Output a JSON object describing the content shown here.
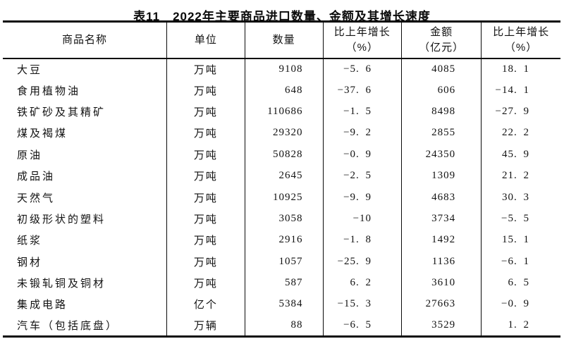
{
  "title": "表11　2022年主要商品进口数量、金额及其增长速度",
  "colors": {
    "text": "#121212",
    "border": "#0a0a0a",
    "background": "#ffffff"
  },
  "table": {
    "headers": [
      {
        "line1": "商品名称"
      },
      {
        "line1": "单位"
      },
      {
        "line1": "数量"
      },
      {
        "line1": "比上年增长",
        "line2": "（%）"
      },
      {
        "line1": "金额",
        "line2": "（亿元）"
      },
      {
        "line1": "比上年增长",
        "line2": "（%）"
      }
    ],
    "rows": [
      {
        "name": "大豆",
        "unit": "万吨",
        "quantity": 9108,
        "quantity_growth": -5.6,
        "amount": 4085,
        "amount_growth": 18.1
      },
      {
        "name": "食用植物油",
        "unit": "万吨",
        "quantity": 648,
        "quantity_growth": -37.6,
        "amount": 606,
        "amount_growth": -14.1
      },
      {
        "name": "铁矿砂及其精矿",
        "unit": "万吨",
        "quantity": 110686,
        "quantity_growth": -1.5,
        "amount": 8498,
        "amount_growth": -27.9
      },
      {
        "name": "煤及褐煤",
        "unit": "万吨",
        "quantity": 29320,
        "quantity_growth": -9.2,
        "amount": 2855,
        "amount_growth": 22.2
      },
      {
        "name": "原油",
        "unit": "万吨",
        "quantity": 50828,
        "quantity_growth": -0.9,
        "amount": 24350,
        "amount_growth": 45.9
      },
      {
        "name": "成品油",
        "unit": "万吨",
        "quantity": 2645,
        "quantity_growth": -2.5,
        "amount": 1309,
        "amount_growth": 21.2
      },
      {
        "name": "天然气",
        "unit": "万吨",
        "quantity": 10925,
        "quantity_growth": -9.9,
        "amount": 4683,
        "amount_growth": 30.3
      },
      {
        "name": "初级形状的塑料",
        "unit": "万吨",
        "quantity": 3058,
        "quantity_growth": -10.0,
        "amount": 3734,
        "amount_growth": -5.5
      },
      {
        "name": "纸浆",
        "unit": "万吨",
        "quantity": 2916,
        "quantity_growth": -1.8,
        "amount": 1492,
        "amount_growth": 15.1
      },
      {
        "name": "钢材",
        "unit": "万吨",
        "quantity": 1057,
        "quantity_growth": -25.9,
        "amount": 1136,
        "amount_growth": -6.1
      },
      {
        "name": "未锻轧铜及铜材",
        "unit": "万吨",
        "quantity": 587,
        "quantity_growth": 6.2,
        "amount": 3610,
        "amount_growth": 6.5
      },
      {
        "name": "集成电路",
        "unit": "亿个",
        "quantity": 5384,
        "quantity_growth": -15.3,
        "amount": 27663,
        "amount_growth": -0.9
      },
      {
        "name": "汽车（包括底盘）",
        "unit": "万辆",
        "quantity": 88,
        "quantity_growth": -6.5,
        "amount": 3529,
        "amount_growth": 1.2
      }
    ]
  },
  "chart_data": {
    "type": "table",
    "title": "表11　2022年主要商品进口数量、金额及其增长速度",
    "columns": [
      "商品名称",
      "单位",
      "数量",
      "比上年增长（%）",
      "金额（亿元）",
      "比上年增长（%）"
    ],
    "rows": [
      [
        "大豆",
        "万吨",
        9108,
        -5.6,
        4085,
        18.1
      ],
      [
        "食用植物油",
        "万吨",
        648,
        -37.6,
        606,
        -14.1
      ],
      [
        "铁矿砂及其精矿",
        "万吨",
        110686,
        -1.5,
        8498,
        -27.9
      ],
      [
        "煤及褐煤",
        "万吨",
        29320,
        -9.2,
        2855,
        22.2
      ],
      [
        "原油",
        "万吨",
        50828,
        -0.9,
        24350,
        45.9
      ],
      [
        "成品油",
        "万吨",
        2645,
        -2.5,
        1309,
        21.2
      ],
      [
        "天然气",
        "万吨",
        10925,
        -9.9,
        4683,
        30.3
      ],
      [
        "初级形状的塑料",
        "万吨",
        3058,
        -10.0,
        3734,
        -5.5
      ],
      [
        "纸浆",
        "万吨",
        2916,
        -1.8,
        1492,
        15.1
      ],
      [
        "钢材",
        "万吨",
        1057,
        -25.9,
        1136,
        -6.1
      ],
      [
        "未锻轧铜及铜材",
        "万吨",
        587,
        6.2,
        3610,
        6.5
      ],
      [
        "集成电路",
        "亿个",
        5384,
        -15.3,
        27663,
        -0.9
      ],
      [
        "汽车（包括底盘）",
        "万辆",
        88,
        -6.5,
        3529,
        1.2
      ]
    ]
  }
}
